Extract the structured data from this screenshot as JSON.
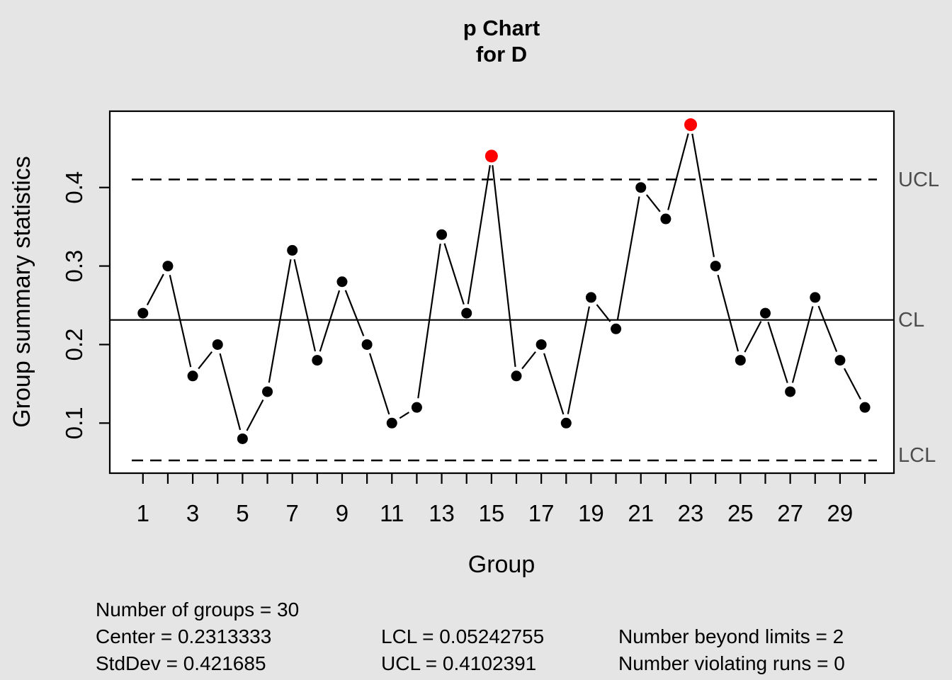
{
  "title": {
    "line1": "p Chart",
    "line2": "for D"
  },
  "axes": {
    "xlabel": "Group",
    "ylabel": "Group summary statistics"
  },
  "limit_labels": {
    "ucl": "UCL",
    "cl": "CL",
    "lcl": "LCL"
  },
  "stats": {
    "number_of_groups": "Number of groups = 30",
    "center": "Center = 0.2313333",
    "stddev": "StdDev = 0.421685",
    "lcl": "LCL = 0.05242755",
    "ucl": "UCL = 0.4102391",
    "beyond_limits": "Number beyond limits = 2",
    "violating_runs": "Number violating runs = 0"
  },
  "colors": {
    "background": "#e5e5e5",
    "panel": "#ffffff",
    "line": "#000000",
    "point": "#000000",
    "beyond_point": "#ff0000",
    "limit_label_text": "#4d4d4d"
  },
  "chart_data": {
    "type": "line",
    "title": "p Chart for D",
    "xlabel": "Group",
    "ylabel": "Group summary statistics",
    "groups": [
      1,
      2,
      3,
      4,
      5,
      6,
      7,
      8,
      9,
      10,
      11,
      12,
      13,
      14,
      15,
      16,
      17,
      18,
      19,
      20,
      21,
      22,
      23,
      24,
      25,
      26,
      27,
      28,
      29,
      30
    ],
    "values": [
      0.24,
      0.3,
      0.16,
      0.2,
      0.08,
      0.14,
      0.32,
      0.18,
      0.28,
      0.2,
      0.1,
      0.12,
      0.34,
      0.24,
      0.44,
      0.16,
      0.2,
      0.1,
      0.26,
      0.22,
      0.4,
      0.36,
      0.48,
      0.3,
      0.18,
      0.24,
      0.14,
      0.26,
      0.18,
      0.12
    ],
    "center": 0.2313333,
    "ucl": 0.4102391,
    "lcl": 0.05242755,
    "std_dev": 0.421685,
    "n_groups": 30,
    "beyond_limits_groups": [
      15,
      23
    ],
    "number_beyond_limits": 2,
    "number_violating_runs": 0,
    "yticks": [
      "0.1",
      "0.2",
      "0.3",
      "0.4"
    ],
    "xtick_labels": [
      "1",
      "3",
      "5",
      "7",
      "9",
      "11",
      "13",
      "15",
      "17",
      "19",
      "21",
      "23",
      "25",
      "27",
      "29"
    ],
    "ylim": [
      0.036,
      0.497
    ],
    "grid": false,
    "legend": "none"
  }
}
